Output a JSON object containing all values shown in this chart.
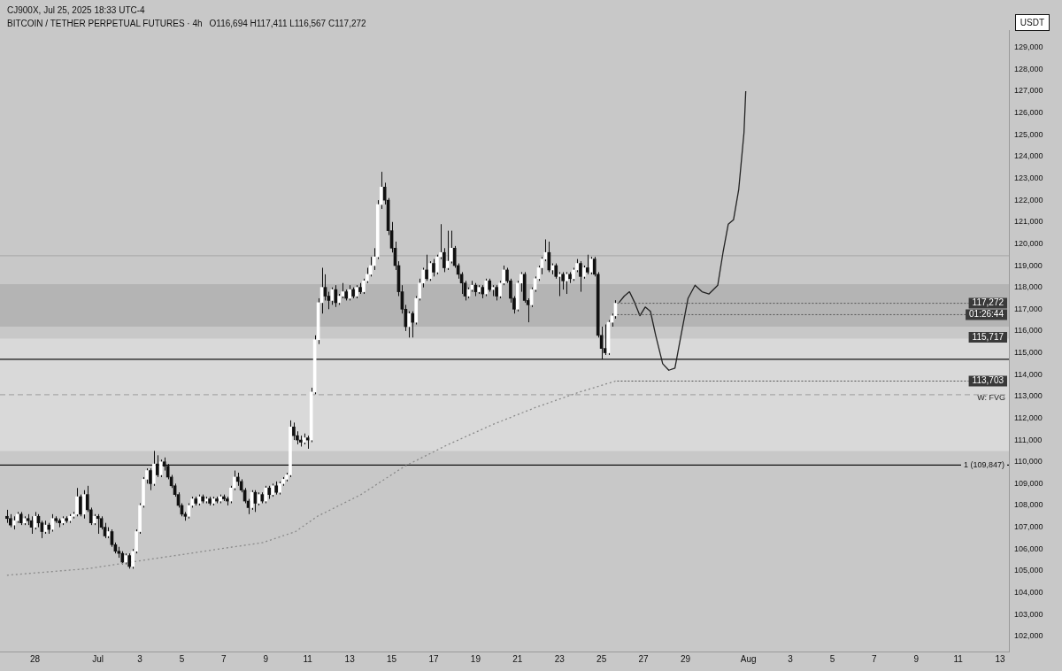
{
  "chart_data": {
    "type": "candlestick",
    "title": "BITCOIN / TETHER PERPETUAL FUTURES · 4h",
    "subtitle": "O116,694 H117,411 L116,567 C117,272",
    "ylabel": "USDT",
    "annotations": [
      "CJ900X, Jul 25, 2025 18:33 UTC-4",
      {
        "text": "117,272",
        "x": "2025-07-25T16:00",
        "y": 117272
      },
      {
        "text": "01:26:44",
        "x": "2025-07-25T16:00",
        "y": 116750
      },
      {
        "text": "115,717",
        "y": 115717
      },
      {
        "text": "113,703",
        "x": "2025-07-25T16:00",
        "y": 113703
      }
    ],
    "x": [
      "2025-06-26T16:00",
      "2025-06-26T20:00",
      "2025-06-27T00:00",
      "2025-06-27T04:00",
      "2025-06-27T08:00",
      "2025-06-27T12:00",
      "2025-06-27T16:00",
      "2025-06-27T20:00",
      "2025-06-28T00:00",
      "2025-06-28T04:00",
      "2025-06-28T08:00",
      "2025-06-28T12:00",
      "2025-06-28T16:00",
      "2025-06-28T20:00",
      "2025-06-29T00:00",
      "2025-06-29T04:00",
      "2025-06-29T08:00",
      "2025-06-29T12:00",
      "2025-06-29T16:00",
      "2025-06-29T20:00",
      "2025-06-30T00:00",
      "2025-06-30T04:00",
      "2025-06-30T08:00",
      "2025-06-30T12:00",
      "2025-06-30T16:00",
      "2025-06-30T20:00",
      "2025-07-01T00:00",
      "2025-07-01T04:00",
      "2025-07-01T08:00",
      "2025-07-01T12:00",
      "2025-07-01T16:00",
      "2025-07-01T20:00",
      "2025-07-02T00:00",
      "2025-07-02T04:00",
      "2025-07-02T08:00",
      "2025-07-02T12:00",
      "2025-07-02T16:00",
      "2025-07-02T20:00",
      "2025-07-03T00:00",
      "2025-07-03T04:00",
      "2025-07-03T08:00",
      "2025-07-03T12:00",
      "2025-07-03T16:00",
      "2025-07-03T20:00",
      "2025-07-04T00:00",
      "2025-07-04T04:00",
      "2025-07-04T08:00",
      "2025-07-04T12:00",
      "2025-07-04T16:00",
      "2025-07-04T20:00",
      "2025-07-05T00:00",
      "2025-07-05T04:00",
      "2025-07-05T08:00",
      "2025-07-05T12:00",
      "2025-07-05T16:00",
      "2025-07-05T20:00",
      "2025-07-06T00:00",
      "2025-07-06T04:00",
      "2025-07-06T08:00",
      "2025-07-06T12:00",
      "2025-07-06T16:00",
      "2025-07-06T20:00",
      "2025-07-07T00:00",
      "2025-07-07T04:00",
      "2025-07-07T08:00",
      "2025-07-07T12:00",
      "2025-07-07T16:00",
      "2025-07-07T20:00",
      "2025-07-08T00:00",
      "2025-07-08T04:00",
      "2025-07-08T08:00",
      "2025-07-08T12:00",
      "2025-07-08T16:00",
      "2025-07-08T20:00",
      "2025-07-09T00:00",
      "2025-07-09T04:00",
      "2025-07-09T08:00",
      "2025-07-09T12:00",
      "2025-07-09T16:00",
      "2025-07-09T20:00",
      "2025-07-10T00:00",
      "2025-07-10T04:00",
      "2025-07-10T08:00",
      "2025-07-10T12:00",
      "2025-07-10T16:00",
      "2025-07-10T20:00",
      "2025-07-11T00:00",
      "2025-07-11T04:00",
      "2025-07-11T08:00",
      "2025-07-11T12:00",
      "2025-07-11T16:00",
      "2025-07-11T20:00",
      "2025-07-12T00:00",
      "2025-07-12T04:00",
      "2025-07-12T08:00",
      "2025-07-12T12:00",
      "2025-07-12T16:00",
      "2025-07-12T20:00",
      "2025-07-13T00:00",
      "2025-07-13T04:00",
      "2025-07-13T08:00",
      "2025-07-13T12:00",
      "2025-07-13T16:00",
      "2025-07-13T20:00",
      "2025-07-14T00:00",
      "2025-07-14T04:00",
      "2025-07-14T08:00",
      "2025-07-14T12:00",
      "2025-07-14T16:00",
      "2025-07-14T20:00",
      "2025-07-15T00:00",
      "2025-07-15T04:00",
      "2025-07-15T08:00",
      "2025-07-15T12:00",
      "2025-07-15T16:00",
      "2025-07-15T20:00",
      "2025-07-16T00:00",
      "2025-07-16T04:00",
      "2025-07-16T08:00",
      "2025-07-16T12:00",
      "2025-07-16T16:00",
      "2025-07-16T20:00",
      "2025-07-17T00:00",
      "2025-07-17T04:00",
      "2025-07-17T08:00",
      "2025-07-17T12:00",
      "2025-07-17T16:00",
      "2025-07-17T20:00",
      "2025-07-18T00:00",
      "2025-07-18T04:00",
      "2025-07-18T08:00",
      "2025-07-18T12:00",
      "2025-07-18T16:00",
      "2025-07-18T20:00",
      "2025-07-19T00:00",
      "2025-07-19T04:00",
      "2025-07-19T08:00",
      "2025-07-19T12:00",
      "2025-07-19T16:00",
      "2025-07-19T20:00",
      "2025-07-20T00:00",
      "2025-07-20T04:00",
      "2025-07-20T08:00",
      "2025-07-20T12:00",
      "2025-07-20T16:00",
      "2025-07-20T20:00",
      "2025-07-21T00:00",
      "2025-07-21T04:00",
      "2025-07-21T08:00",
      "2025-07-21T12:00",
      "2025-07-21T16:00",
      "2025-07-21T20:00",
      "2025-07-22T00:00",
      "2025-07-22T04:00",
      "2025-07-22T08:00",
      "2025-07-22T12:00",
      "2025-07-22T16:00",
      "2025-07-22T20:00",
      "2025-07-23T00:00",
      "2025-07-23T04:00",
      "2025-07-23T08:00",
      "2025-07-23T12:00",
      "2025-07-23T16:00",
      "2025-07-23T20:00",
      "2025-07-24T00:00",
      "2025-07-24T04:00",
      "2025-07-24T08:00",
      "2025-07-24T12:00",
      "2025-07-24T16:00",
      "2025-07-24T20:00",
      "2025-07-25T00:00",
      "2025-07-25T04:00",
      "2025-07-25T08:00",
      "2025-07-25T12:00",
      "2025-07-25T16:00"
    ],
    "ohlc": [
      [
        107500,
        107800,
        107200,
        107400
      ],
      [
        107400,
        107600,
        107000,
        107100
      ],
      [
        107100,
        107500,
        106900,
        107300
      ],
      [
        107300,
        107700,
        107200,
        107600
      ],
      [
        107600,
        107700,
        107100,
        107200
      ],
      [
        107200,
        107500,
        107100,
        107400
      ],
      [
        107400,
        107600,
        107100,
        107300
      ],
      [
        107300,
        107500,
        106700,
        107000
      ],
      [
        107000,
        107700,
        106900,
        107500
      ],
      [
        107500,
        107600,
        107000,
        107200
      ],
      [
        107200,
        107300,
        106500,
        106800
      ],
      [
        106800,
        107300,
        106700,
        107100
      ],
      [
        107100,
        107200,
        106700,
        106900
      ],
      [
        106900,
        107600,
        106800,
        107400
      ],
      [
        107400,
        107500,
        107200,
        107300
      ],
      [
        107300,
        107400,
        107000,
        107200
      ],
      [
        107200,
        107500,
        107100,
        107400
      ],
      [
        107400,
        107500,
        107200,
        107300
      ],
      [
        107300,
        107600,
        107200,
        107500
      ],
      [
        107500,
        107700,
        107400,
        107600
      ],
      [
        107600,
        108800,
        107500,
        108400
      ],
      [
        108400,
        108500,
        107500,
        107600
      ],
      [
        107600,
        108700,
        107400,
        108500
      ],
      [
        108500,
        108900,
        107700,
        107800
      ],
      [
        107800,
        107900,
        107100,
        107200
      ],
      [
        107200,
        107600,
        107100,
        107500
      ],
      [
        107500,
        107600,
        106700,
        107400
      ],
      [
        107400,
        107500,
        106900,
        107000
      ],
      [
        107000,
        107200,
        106500,
        106600
      ],
      [
        106600,
        107000,
        106500,
        106800
      ],
      [
        106800,
        106900,
        106100,
        106200
      ],
      [
        106200,
        106300,
        105800,
        105900
      ],
      [
        105900,
        106100,
        105600,
        105800
      ],
      [
        105800,
        105900,
        105300,
        105400
      ],
      [
        105400,
        105800,
        105300,
        105700
      ],
      [
        105700,
        105800,
        105100,
        105200
      ],
      [
        105200,
        106000,
        105100,
        105900
      ],
      [
        105900,
        106900,
        105800,
        106800
      ],
      [
        106800,
        108100,
        106700,
        108000
      ],
      [
        108000,
        109300,
        107900,
        109200
      ],
      [
        109200,
        109700,
        109000,
        109600
      ],
      [
        109600,
        109700,
        108700,
        109000
      ],
      [
        109000,
        110500,
        108900,
        109900
      ],
      [
        109900,
        110300,
        109300,
        109400
      ],
      [
        109400,
        110100,
        109300,
        110000
      ],
      [
        110000,
        110200,
        109600,
        109800
      ],
      [
        109800,
        109900,
        109200,
        109300
      ],
      [
        109300,
        109400,
        108800,
        108900
      ],
      [
        108900,
        109000,
        108400,
        108500
      ],
      [
        108500,
        108600,
        107900,
        108000
      ],
      [
        108000,
        108100,
        107500,
        107600
      ],
      [
        107600,
        107700,
        107300,
        107500
      ],
      [
        107500,
        108100,
        107400,
        108000
      ],
      [
        108000,
        108400,
        107900,
        108300
      ],
      [
        108300,
        108400,
        108000,
        108100
      ],
      [
        108100,
        108500,
        108000,
        108400
      ],
      [
        108400,
        108500,
        108100,
        108200
      ],
      [
        108200,
        108400,
        108100,
        108300
      ],
      [
        108300,
        108400,
        108000,
        108100
      ],
      [
        108100,
        108400,
        108000,
        108300
      ],
      [
        108300,
        108400,
        108100,
        108200
      ],
      [
        108200,
        108500,
        108100,
        108400
      ],
      [
        108400,
        108500,
        108200,
        108300
      ],
      [
        108300,
        108400,
        108000,
        108200
      ],
      [
        108200,
        108900,
        108100,
        108800
      ],
      [
        108800,
        109600,
        108700,
        109300
      ],
      [
        109300,
        109500,
        108900,
        109100
      ],
      [
        109100,
        109200,
        108600,
        108700
      ],
      [
        108700,
        108800,
        108100,
        108200
      ],
      [
        108200,
        108300,
        107600,
        107900
      ],
      [
        107900,
        108700,
        107800,
        108600
      ],
      [
        108600,
        108700,
        107700,
        108100
      ],
      [
        108100,
        108600,
        108000,
        108500
      ],
      [
        108500,
        108600,
        108100,
        108200
      ],
      [
        108200,
        108900,
        108100,
        108800
      ],
      [
        108800,
        108900,
        108300,
        108500
      ],
      [
        108500,
        109000,
        108400,
        108900
      ],
      [
        108900,
        109100,
        108500,
        108600
      ],
      [
        108600,
        109100,
        108500,
        109000
      ],
      [
        109000,
        109300,
        108900,
        109200
      ],
      [
        109200,
        109500,
        109100,
        109400
      ],
      [
        109400,
        111900,
        109300,
        111600
      ],
      [
        111600,
        111800,
        111000,
        111200
      ],
      [
        111200,
        111400,
        110800,
        111000
      ],
      [
        111000,
        111200,
        110700,
        110900
      ],
      [
        110900,
        111300,
        110800,
        111100
      ],
      [
        111100,
        111200,
        110600,
        111000
      ],
      [
        111000,
        113400,
        110900,
        113200
      ],
      [
        113200,
        115800,
        113100,
        115600
      ],
      [
        115600,
        117500,
        115400,
        117300
      ],
      [
        117300,
        118900,
        116800,
        118000
      ],
      [
        118000,
        118600,
        117400,
        117600
      ],
      [
        117600,
        117800,
        117000,
        117400
      ],
      [
        117400,
        118000,
        117200,
        117900
      ],
      [
        117900,
        118100,
        117100,
        117300
      ],
      [
        117300,
        117700,
        117200,
        117600
      ],
      [
        117600,
        118200,
        117500,
        117800
      ],
      [
        117800,
        117900,
        117400,
        117500
      ],
      [
        117500,
        118100,
        117400,
        117900
      ],
      [
        117900,
        118000,
        117500,
        117600
      ],
      [
        117600,
        118100,
        117500,
        118000
      ],
      [
        118000,
        118200,
        117700,
        117800
      ],
      [
        117800,
        118400,
        117700,
        118300
      ],
      [
        118300,
        118900,
        118200,
        118600
      ],
      [
        118600,
        119400,
        118500,
        119000
      ],
      [
        119000,
        119800,
        118800,
        119400
      ],
      [
        119400,
        122000,
        119300,
        121800
      ],
      [
        121800,
        123300,
        121600,
        122600
      ],
      [
        122600,
        122800,
        121800,
        122000
      ],
      [
        122000,
        122100,
        120400,
        120600
      ],
      [
        120600,
        121000,
        119600,
        119800
      ],
      [
        119800,
        120100,
        118800,
        119000
      ],
      [
        119000,
        119200,
        117600,
        117800
      ],
      [
        117800,
        118100,
        116800,
        117000
      ],
      [
        117000,
        117200,
        116000,
        116200
      ],
      [
        116200,
        116900,
        115700,
        116800
      ],
      [
        116800,
        116900,
        115700,
        116400
      ],
      [
        116400,
        117600,
        116300,
        117500
      ],
      [
        117500,
        118400,
        117400,
        118200
      ],
      [
        118200,
        118900,
        118000,
        118800
      ],
      [
        118800,
        119500,
        118300,
        118400
      ],
      [
        118400,
        119200,
        118300,
        119100
      ],
      [
        119100,
        119300,
        118500,
        118700
      ],
      [
        118700,
        119500,
        118600,
        119400
      ],
      [
        119400,
        120900,
        119300,
        119600
      ],
      [
        119600,
        119800,
        118700,
        118900
      ],
      [
        118900,
        120600,
        118800,
        119200
      ],
      [
        119200,
        120600,
        119100,
        119800
      ],
      [
        119800,
        119900,
        118900,
        119000
      ],
      [
        119000,
        119100,
        118400,
        118600
      ],
      [
        118600,
        118700,
        117700,
        118200
      ],
      [
        118200,
        118300,
        117400,
        117600
      ],
      [
        117600,
        118000,
        117500,
        117900
      ],
      [
        117900,
        118300,
        117800,
        118100
      ],
      [
        118100,
        118200,
        117600,
        117800
      ],
      [
        117800,
        118100,
        117700,
        118000
      ],
      [
        118000,
        118100,
        117500,
        117700
      ],
      [
        117700,
        118400,
        117600,
        118300
      ],
      [
        118300,
        118400,
        117800,
        117900
      ],
      [
        117900,
        118100,
        117600,
        118000
      ],
      [
        118000,
        118100,
        117400,
        117600
      ],
      [
        117600,
        118300,
        117500,
        118200
      ],
      [
        118200,
        119000,
        118100,
        118800
      ],
      [
        118800,
        118900,
        118200,
        118300
      ],
      [
        118300,
        118400,
        117300,
        117500
      ],
      [
        117500,
        117600,
        116800,
        117000
      ],
      [
        117000,
        118300,
        116900,
        118200
      ],
      [
        118200,
        118700,
        117800,
        118600
      ],
      [
        118600,
        118700,
        117300,
        117400
      ],
      [
        117400,
        117500,
        116400,
        117200
      ],
      [
        117200,
        118000,
        117100,
        117900
      ],
      [
        117900,
        118500,
        117800,
        118400
      ],
      [
        118400,
        119000,
        118300,
        118900
      ],
      [
        118900,
        119400,
        118600,
        119300
      ],
      [
        119300,
        120200,
        119200,
        119600
      ],
      [
        119600,
        120100,
        118700,
        118800
      ],
      [
        118800,
        119100,
        118600,
        119000
      ],
      [
        119000,
        119100,
        118400,
        118500
      ],
      [
        118500,
        118700,
        117600,
        118600
      ],
      [
        118600,
        118700,
        117900,
        118300
      ],
      [
        118300,
        118700,
        117700,
        118600
      ],
      [
        118600,
        118700,
        118200,
        118400
      ],
      [
        118400,
        118900,
        118300,
        118800
      ],
      [
        118800,
        119300,
        118700,
        119100
      ],
      [
        119100,
        119200,
        117800,
        118500
      ],
      [
        118500,
        119000,
        118400,
        118900
      ],
      [
        118900,
        119500,
        118600,
        118700
      ],
      [
        118700,
        119400,
        118600,
        119300
      ],
      [
        119300,
        119400,
        118500,
        118600
      ],
      [
        118600,
        118700,
        115700,
        115800
      ],
      [
        115800,
        116200,
        114700,
        115200
      ],
      [
        115200,
        116300,
        114900,
        115000
      ],
      [
        115000,
        116500,
        114900,
        116400
      ],
      [
        116400,
        116800,
        116200,
        116694
      ],
      [
        116694,
        117411,
        116567,
        117272
      ]
    ],
    "series": [
      {
        "type": "line",
        "color": "#8a8a8a",
        "line_style": "dotted",
        "x": [
          "2025-06-26T16:00",
          "2025-06-30T12:00",
          "2025-07-04T16:00",
          "2025-07-08T21:00",
          "2025-07-10T10:00",
          "2025-07-11T11:00",
          "2025-07-13T13:00",
          "2025-07-15T15:00",
          "2025-07-17T17:00",
          "2025-07-19T19:00",
          "2025-07-21T21:00",
          "2025-07-23T23:00",
          "2025-07-25T16:00"
        ],
        "values": [
          104800,
          105100,
          105700,
          106300,
          106800,
          107500,
          108500,
          109800,
          110800,
          111700,
          112500,
          113200,
          113703
        ]
      },
      {
        "type": "line",
        "color": "#222222",
        "line_style": "solid",
        "x": [
          "2025-07-25T20:00",
          "2025-07-26T02:00",
          "2025-07-26T08:00",
          "2025-07-26T14:00",
          "2025-07-26T20:00",
          "2025-07-27T02:00",
          "2025-07-27T08:00",
          "2025-07-27T14:00",
          "2025-07-27T22:00",
          "2025-07-28T05:00",
          "2025-07-28T12:00",
          "2025-07-28T18:00",
          "2025-07-29T03:00",
          "2025-07-29T11:00",
          "2025-07-29T19:00",
          "2025-07-30T03:00",
          "2025-07-30T13:00",
          "2025-07-30T19:00",
          "2025-07-31T01:00",
          "2025-07-31T07:00",
          "2025-07-31T13:00",
          "2025-07-31T19:00",
          "2025-07-31T21:00"
        ],
        "values": [
          117300,
          117600,
          117800,
          117300,
          116700,
          117100,
          116900,
          115800,
          114500,
          114200,
          114300,
          115600,
          117500,
          118100,
          117800,
          117700,
          118100,
          119600,
          120900,
          121100,
          122500,
          125100,
          127000
        ]
      }
    ],
    "bands": [
      {
        "axis": "y",
        "from": 110500,
        "to": 115650,
        "label": "W: FVG",
        "color": "#d9d9d9"
      },
      {
        "axis": "y",
        "from": 116200,
        "to": 118150,
        "color": "#b4b4b4"
      }
    ],
    "ref_lines": [
      {
        "axis": "y",
        "value": 109847,
        "label": "1 (109,847)",
        "color": "#111111",
        "line_style": "solid"
      },
      {
        "axis": "y",
        "value": 114700,
        "color": "#111111",
        "line_style": "solid"
      },
      {
        "axis": "y",
        "value": 119450,
        "color": "#adadad",
        "line_style": "solid"
      },
      {
        "axis": "y",
        "value": 113075,
        "color": "#a8a8a8",
        "line_style": "dashed"
      }
    ],
    "xlim": [
      "2025-06-26T08:00",
      "2025-08-13T10:00"
    ],
    "xticks": [
      {
        "value": "2025-06-28",
        "label": "28"
      },
      {
        "value": "2025-07-01",
        "label": "Jul"
      },
      {
        "value": "2025-07-03",
        "label": "3"
      },
      {
        "value": "2025-07-05",
        "label": "5"
      },
      {
        "value": "2025-07-07",
        "label": "7"
      },
      {
        "value": "2025-07-09",
        "label": "9"
      },
      {
        "value": "2025-07-11",
        "label": "11"
      },
      {
        "value": "2025-07-13",
        "label": "13"
      },
      {
        "value": "2025-07-15",
        "label": "15"
      },
      {
        "value": "2025-07-17",
        "label": "17"
      },
      {
        "value": "2025-07-19",
        "label": "19"
      },
      {
        "value": "2025-07-21",
        "label": "21"
      },
      {
        "value": "2025-07-23",
        "label": "23"
      },
      {
        "value": "2025-07-25",
        "label": "25"
      },
      {
        "value": "2025-07-27",
        "label": "27"
      },
      {
        "value": "2025-07-29",
        "label": "29"
      },
      {
        "value": "2025-08-01",
        "label": "Aug"
      },
      {
        "value": "2025-08-03",
        "label": "3"
      },
      {
        "value": "2025-08-05",
        "label": "5"
      },
      {
        "value": "2025-08-07",
        "label": "7"
      },
      {
        "value": "2025-08-09",
        "label": "9"
      },
      {
        "value": "2025-08-11",
        "label": "11"
      },
      {
        "value": "2025-08-13",
        "label": "13"
      }
    ],
    "ylim": [
      101300,
      129800
    ],
    "yticks": [
      {
        "value": 102000,
        "label": "102,000"
      },
      {
        "value": 103000,
        "label": "103,000"
      },
      {
        "value": 104000,
        "label": "104,000"
      },
      {
        "value": 105000,
        "label": "105,000"
      },
      {
        "value": 106000,
        "label": "106,000"
      },
      {
        "value": 107000,
        "label": "107,000"
      },
      {
        "value": 108000,
        "label": "108,000"
      },
      {
        "value": 109000,
        "label": "109,000"
      },
      {
        "value": 110000,
        "label": "110,000"
      },
      {
        "value": 111000,
        "label": "111,000"
      },
      {
        "value": 112000,
        "label": "112,000"
      },
      {
        "value": 113000,
        "label": "113,000"
      },
      {
        "value": 114000,
        "label": "114,000"
      },
      {
        "value": 115000,
        "label": "115,000"
      },
      {
        "value": 116000,
        "label": "116,000"
      },
      {
        "value": 117000,
        "label": "117,000"
      },
      {
        "value": 118000,
        "label": "118,000"
      },
      {
        "value": 119000,
        "label": "119,000"
      },
      {
        "value": 120000,
        "label": "120,000"
      },
      {
        "value": 121000,
        "label": "121,000"
      },
      {
        "value": 122000,
        "label": "122,000"
      },
      {
        "value": 123000,
        "label": "123,000"
      },
      {
        "value": 124000,
        "label": "124,000"
      },
      {
        "value": 125000,
        "label": "125,000"
      },
      {
        "value": 126000,
        "label": "126,000"
      },
      {
        "value": 127000,
        "label": "127,000"
      },
      {
        "value": 128000,
        "label": "128,000"
      },
      {
        "value": 129000,
        "label": "129,000"
      }
    ],
    "grid": false,
    "legend": false
  }
}
